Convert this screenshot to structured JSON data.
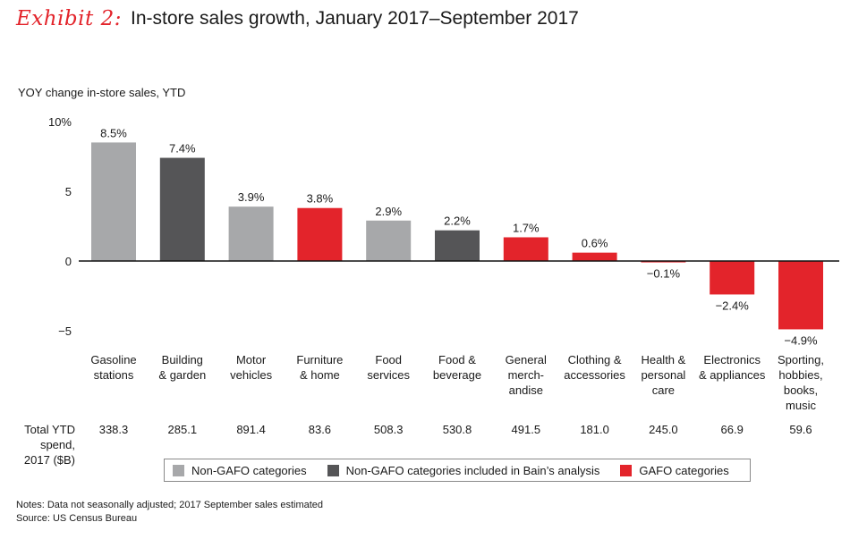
{
  "title": {
    "exhibit": "Exhibit 2:",
    "text": "In-store sales growth, January 2017–September 2017"
  },
  "colors": {
    "nongafo": "#a7a8aa",
    "bain": "#555557",
    "gafo": "#e3242b",
    "accent": "#e3242b"
  },
  "chart_data": {
    "type": "bar",
    "ylabel": "YOY change in-store sales, YTD",
    "ylim": [
      -5,
      10
    ],
    "yticks": [
      {
        "value": 10,
        "label": "10%"
      },
      {
        "value": 5,
        "label": "5"
      },
      {
        "value": 0,
        "label": "0"
      },
      {
        "value": -5,
        "label": "−5"
      }
    ],
    "categories": [
      [
        "Gasoline",
        "stations"
      ],
      [
        "Building",
        "& garden"
      ],
      [
        "Motor",
        "vehicles"
      ],
      [
        "Furniture",
        "& home"
      ],
      [
        "Food",
        "services"
      ],
      [
        "Food &",
        "beverage"
      ],
      [
        "General",
        "merch-",
        "andise"
      ],
      [
        "Clothing &",
        "accessories"
      ],
      [
        "Health &",
        "personal",
        "care"
      ],
      [
        "Electronics",
        "& appliances"
      ],
      [
        "Sporting,",
        "hobbies,",
        "books,",
        "music"
      ]
    ],
    "values": [
      8.5,
      7.4,
      3.9,
      3.8,
      2.9,
      2.2,
      1.7,
      0.6,
      -0.1,
      -2.4,
      -4.9
    ],
    "value_labels": [
      "8.5%",
      "7.4%",
      "3.9%",
      "3.8%",
      "2.9%",
      "2.2%",
      "1.7%",
      "0.6%",
      "−0.1%",
      "−2.4%",
      "−4.9%"
    ],
    "groups": [
      "nongafo",
      "bain",
      "nongafo",
      "gafo",
      "nongafo",
      "bain",
      "gafo",
      "gafo",
      "gafo",
      "gafo",
      "gafo"
    ],
    "spend_label": [
      "Total YTD",
      "spend,",
      "2017 ($B)"
    ],
    "spend": [
      "338.3",
      "285.1",
      "891.4",
      "83.6",
      "508.3",
      "530.8",
      "491.5",
      "181.0",
      "245.0",
      "66.9",
      "59.6"
    ]
  },
  "legend": [
    {
      "key": "nongafo",
      "label": "Non-GAFO categories"
    },
    {
      "key": "bain",
      "label": "Non-GAFO categories included in Bain’s analysis"
    },
    {
      "key": "gafo",
      "label": "GAFO categories"
    }
  ],
  "notes": {
    "line1": "Notes: Data not seasonally adjusted; 2017 September sales estimated",
    "line2": "Source: US Census Bureau"
  }
}
